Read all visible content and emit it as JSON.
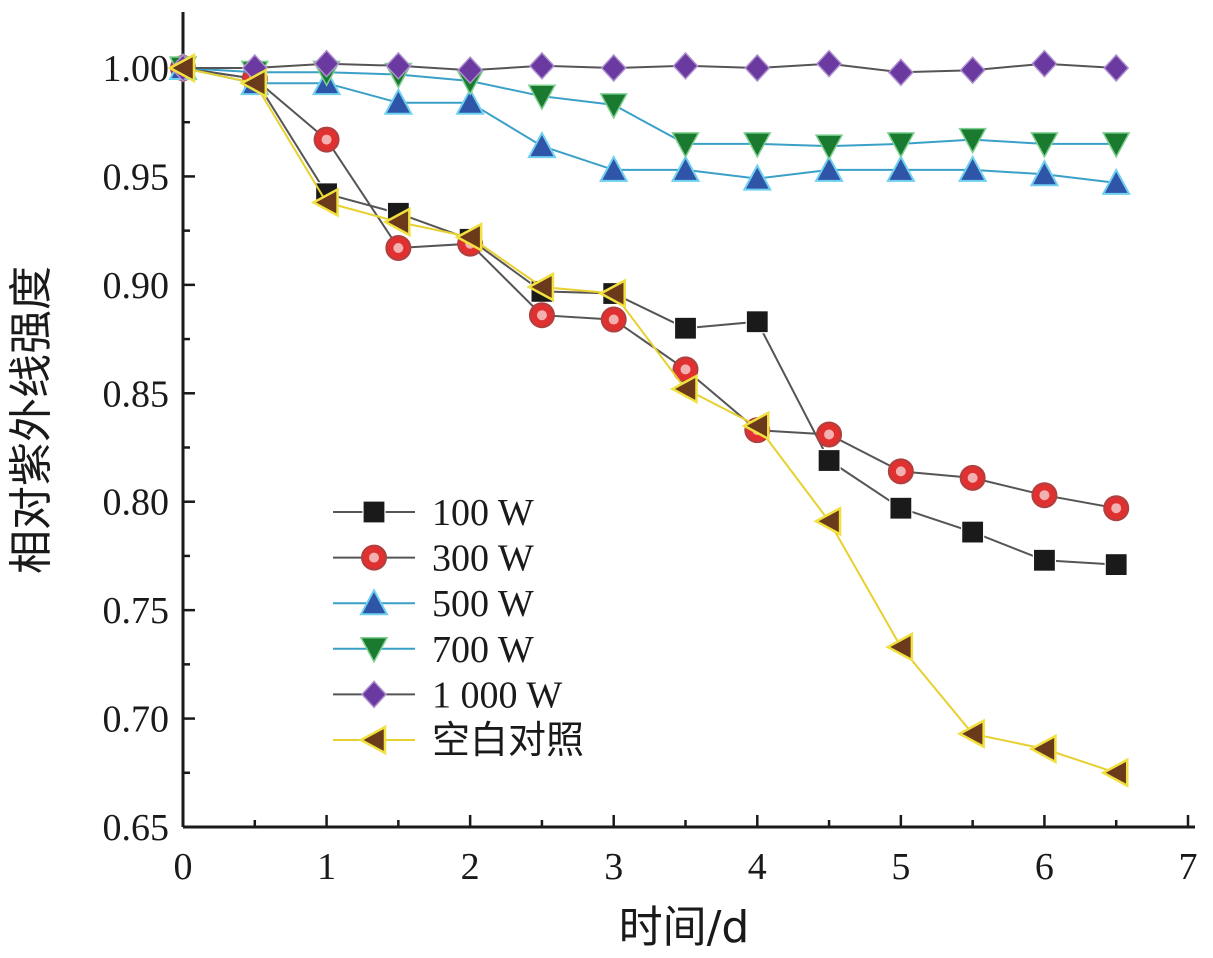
{
  "chart_data": {
    "type": "line",
    "title": "",
    "xlabel": "时间/d",
    "ylabel": "相对紫外线强度",
    "xlim": [
      0,
      7
    ],
    "ylim": [
      0.65,
      1.02
    ],
    "xticks": [
      "0",
      "1",
      "2",
      "3",
      "4",
      "5",
      "6",
      "7"
    ],
    "yticks": [
      "0.65",
      "0.70",
      "0.75",
      "0.80",
      "0.85",
      "0.90",
      "0.95",
      "1.00"
    ],
    "grid": false,
    "legend_position": "bottom-left",
    "x": [
      0,
      0.5,
      1,
      1.5,
      2,
      2.5,
      3,
      3.5,
      4,
      4.5,
      5,
      5.5,
      6,
      6.5
    ],
    "series": [
      {
        "name": "100 W",
        "marker": "square",
        "color": "#1a1a1a",
        "line_color": "#555555",
        "values": [
          1.0,
          0.995,
          0.942,
          0.933,
          0.921,
          0.897,
          0.896,
          0.88,
          0.883,
          0.819,
          0.797,
          0.786,
          0.773,
          0.771
        ]
      },
      {
        "name": "300 W",
        "marker": "circle",
        "color": "#e03030",
        "line_color": "#555555",
        "values": [
          1.0,
          0.995,
          0.967,
          0.917,
          0.919,
          0.886,
          0.884,
          0.861,
          0.833,
          0.831,
          0.814,
          0.811,
          0.803,
          0.797
        ]
      },
      {
        "name": "500 W",
        "marker": "triangle-up",
        "color": "#2f55a8",
        "line_color": "#3aa0c8",
        "values": [
          1.0,
          0.993,
          0.993,
          0.984,
          0.984,
          0.964,
          0.953,
          0.953,
          0.949,
          0.953,
          0.953,
          0.953,
          0.951,
          0.947
        ]
      },
      {
        "name": "700 W",
        "marker": "triangle-down",
        "color": "#1a7a30",
        "line_color": "#3aa0c8",
        "values": [
          1.0,
          0.998,
          0.998,
          0.997,
          0.994,
          0.987,
          0.983,
          0.965,
          0.965,
          0.964,
          0.965,
          0.967,
          0.965,
          0.965
        ]
      },
      {
        "name": "1 000 W",
        "marker": "diamond",
        "color": "#6a3aa0",
        "line_color": "#555555",
        "values": [
          1.0,
          1.0,
          1.002,
          1.001,
          0.999,
          1.001,
          1.0,
          1.001,
          1.0,
          1.002,
          0.998,
          0.999,
          1.002,
          1.0
        ]
      },
      {
        "name": "空白对照",
        "marker": "triangle-left",
        "color": "#6a3a1a",
        "line_color": "#e8d030",
        "values": [
          1.0,
          0.993,
          0.938,
          0.929,
          0.922,
          0.899,
          0.896,
          0.852,
          0.835,
          0.791,
          0.733,
          0.693,
          0.686,
          0.675
        ]
      }
    ]
  }
}
